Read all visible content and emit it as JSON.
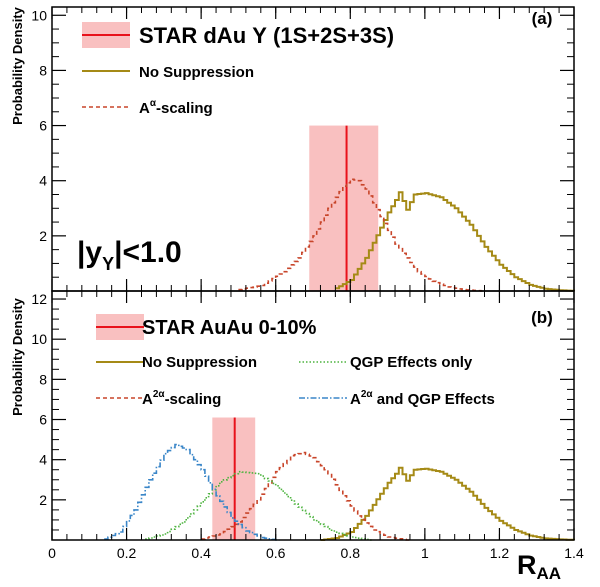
{
  "axis": {
    "xlabel_main": "R",
    "xlabel_sub": "AA",
    "ylabel": "Probability Density"
  },
  "colors": {
    "star": "#e8121b",
    "band": "#f9c0c0",
    "nosup": "#a58a16",
    "scaling": "#c8452a",
    "qgp": "#4cb33e",
    "combined": "#3a86c8"
  },
  "chart_data": [
    {
      "panel_label": "(a)",
      "type": "line",
      "xlim": [
        0,
        1.4
      ],
      "ylim": [
        0,
        10.3
      ],
      "x_ticks": [
        0,
        0.2,
        0.4,
        0.6,
        0.8,
        1,
        1.2,
        1.4
      ],
      "y_ticks": [
        2,
        4,
        6,
        8,
        10
      ],
      "grid": false,
      "legend": [
        {
          "kind": "measurement",
          "label": "STAR dAu Υ (1S+2S+3S)"
        },
        {
          "kind": "solid",
          "label": "No Suppression"
        },
        {
          "kind": "dashed",
          "label_base": "A",
          "label_sup": "α",
          "label_rest": "-scaling"
        }
      ],
      "annotation": {
        "base": "|y",
        "sub": "Υ",
        "rest": "|<1.0"
      },
      "measurement": {
        "value": 0.79,
        "band": [
          0.69,
          0.875
        ],
        "band_height": 6.0
      },
      "series": [
        {
          "name": "No Suppression",
          "style": "solid",
          "x": [
            0.76,
            0.8,
            0.84,
            0.88,
            0.9,
            0.92,
            0.93,
            0.95,
            0.97,
            1.0,
            1.04,
            1.08,
            1.12,
            1.16,
            1.2,
            1.24,
            1.28,
            1.32,
            1.36,
            1.4
          ],
          "y": [
            0.1,
            0.4,
            1.2,
            2.3,
            2.85,
            3.3,
            3.58,
            2.95,
            3.5,
            3.55,
            3.4,
            3.0,
            2.4,
            1.6,
            0.95,
            0.5,
            0.22,
            0.08,
            0.03,
            0.0
          ]
        },
        {
          "name": "Aα-scaling",
          "style": "dashed",
          "x": [
            0.5,
            0.56,
            0.62,
            0.66,
            0.7,
            0.74,
            0.78,
            0.8,
            0.82,
            0.84,
            0.86,
            0.88,
            0.9,
            0.92,
            0.95,
            0.98,
            1.02,
            1.06,
            1.1,
            1.15
          ],
          "y": [
            0.05,
            0.2,
            0.7,
            1.2,
            2.0,
            3.0,
            3.8,
            4.05,
            4.0,
            3.7,
            3.2,
            2.7,
            2.2,
            1.7,
            1.2,
            0.7,
            0.35,
            0.15,
            0.05,
            0.0
          ]
        }
      ]
    },
    {
      "panel_label": "(b)",
      "type": "line",
      "xlim": [
        0,
        1.4
      ],
      "ylim": [
        0,
        12.4
      ],
      "x_ticks": [
        0,
        0.2,
        0.4,
        0.6,
        0.8,
        1,
        1.2,
        1.4
      ],
      "x_tick_labels": [
        "0",
        "0.2",
        "0.4",
        "0.6",
        "0.8",
        "1",
        "1.2",
        "1.4"
      ],
      "y_ticks": [
        2,
        4,
        6,
        8,
        10,
        12
      ],
      "grid": false,
      "legend": [
        {
          "kind": "measurement",
          "label": "STAR AuAu 0-10%"
        },
        {
          "kind": "solid",
          "label": "No Suppression"
        },
        {
          "kind": "dotted",
          "label": "QGP Effects only"
        },
        {
          "kind": "dashed",
          "label_base": "A",
          "label_sup": "2α",
          "label_rest": "-scaling"
        },
        {
          "kind": "dashdot",
          "label_base": "A",
          "label_sup": "2α",
          "label_rest": " and QGP Effects"
        }
      ],
      "measurement": {
        "value": 0.49,
        "band": [
          0.43,
          0.545
        ],
        "band_height": 6.1
      },
      "series": [
        {
          "name": "No Suppression",
          "style": "solid",
          "x": [
            0.72,
            0.76,
            0.8,
            0.84,
            0.88,
            0.9,
            0.92,
            0.93,
            0.95,
            0.97,
            1.0,
            1.04,
            1.08,
            1.12,
            1.16,
            1.2,
            1.24,
            1.28,
            1.32,
            1.36,
            1.4
          ],
          "y": [
            0.0,
            0.1,
            0.4,
            1.2,
            2.3,
            2.85,
            3.3,
            3.6,
            2.95,
            3.5,
            3.55,
            3.4,
            3.0,
            2.4,
            1.6,
            0.95,
            0.5,
            0.22,
            0.08,
            0.03,
            0.0
          ]
        },
        {
          "name": "A2α-scaling",
          "style": "dashed",
          "x": [
            0.4,
            0.45,
            0.5,
            0.55,
            0.6,
            0.64,
            0.67,
            0.7,
            0.74,
            0.78,
            0.82,
            0.86,
            0.9,
            0.95
          ],
          "y": [
            0.05,
            0.3,
            0.9,
            2.0,
            3.4,
            4.2,
            4.35,
            4.1,
            3.3,
            2.2,
            1.2,
            0.5,
            0.15,
            0.0
          ]
        },
        {
          "name": "QGP Effects only",
          "style": "dotted",
          "x": [
            0.25,
            0.3,
            0.35,
            0.4,
            0.45,
            0.5,
            0.55,
            0.6,
            0.65,
            0.7,
            0.75,
            0.8,
            0.85
          ],
          "y": [
            0.05,
            0.3,
            0.9,
            1.9,
            2.9,
            3.4,
            3.3,
            2.7,
            1.8,
            1.0,
            0.45,
            0.15,
            0.0
          ]
        },
        {
          "name": "A2α and QGP Effects",
          "style": "dashdot",
          "x": [
            0.14,
            0.18,
            0.22,
            0.26,
            0.3,
            0.33,
            0.36,
            0.4,
            0.44,
            0.48,
            0.52,
            0.56,
            0.6
          ],
          "y": [
            0.05,
            0.4,
            1.5,
            3.0,
            4.3,
            4.75,
            4.5,
            3.5,
            2.2,
            1.1,
            0.45,
            0.12,
            0.0
          ]
        }
      ]
    }
  ]
}
